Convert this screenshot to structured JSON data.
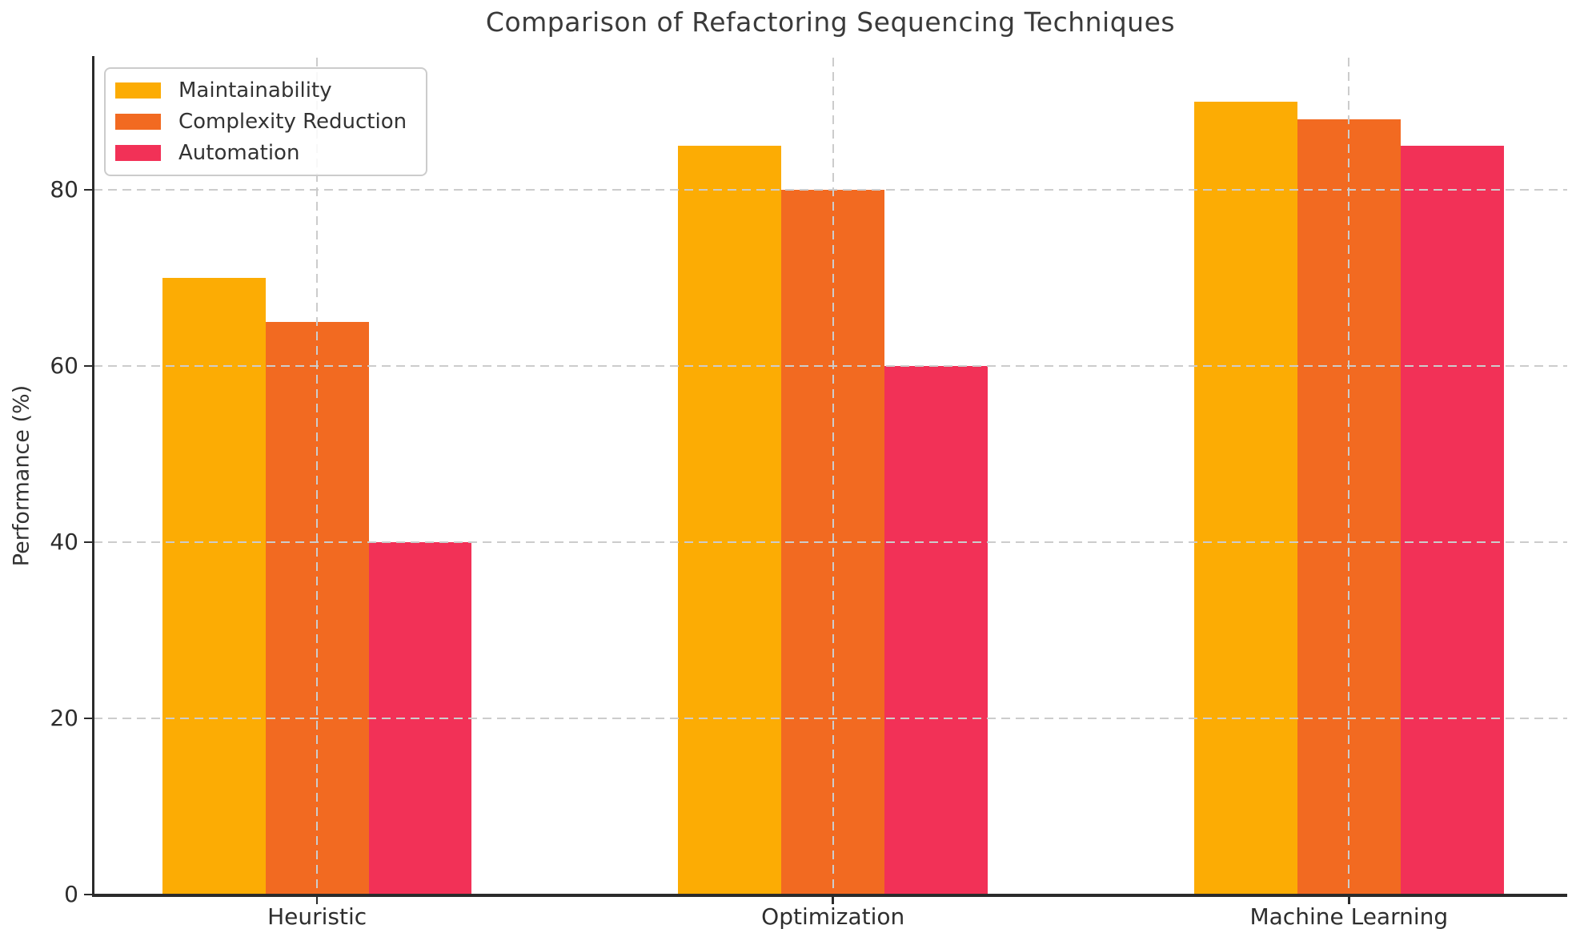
{
  "chart": {
    "title": "Comparison of Refactoring Sequencing Techniques",
    "ylabel": "Performance (%)"
  },
  "chart_data": {
    "type": "bar",
    "title": "Comparison of Refactoring Sequencing Techniques",
    "xlabel": "",
    "ylabel": "Performance (%)",
    "categories": [
      "Heuristic",
      "Optimization",
      "Machine Learning"
    ],
    "series": [
      {
        "name": "Maintainability",
        "color": "#FCAC04",
        "values": [
          70,
          85,
          90
        ]
      },
      {
        "name": "Complexity Reduction",
        "color": "#F26A21",
        "values": [
          65,
          80,
          88
        ]
      },
      {
        "name": "Automation",
        "color": "#F23157",
        "values": [
          40,
          60,
          85
        ]
      }
    ],
    "ylim": [
      0,
      95
    ],
    "yticks": [
      0,
      20,
      40,
      60,
      80
    ],
    "bar_width": 0.2,
    "grid": {
      "horizontal": true,
      "vertical": true,
      "style": "dashed",
      "color": "#cccccc",
      "above_bars": true
    },
    "legend_position": "upper left"
  }
}
